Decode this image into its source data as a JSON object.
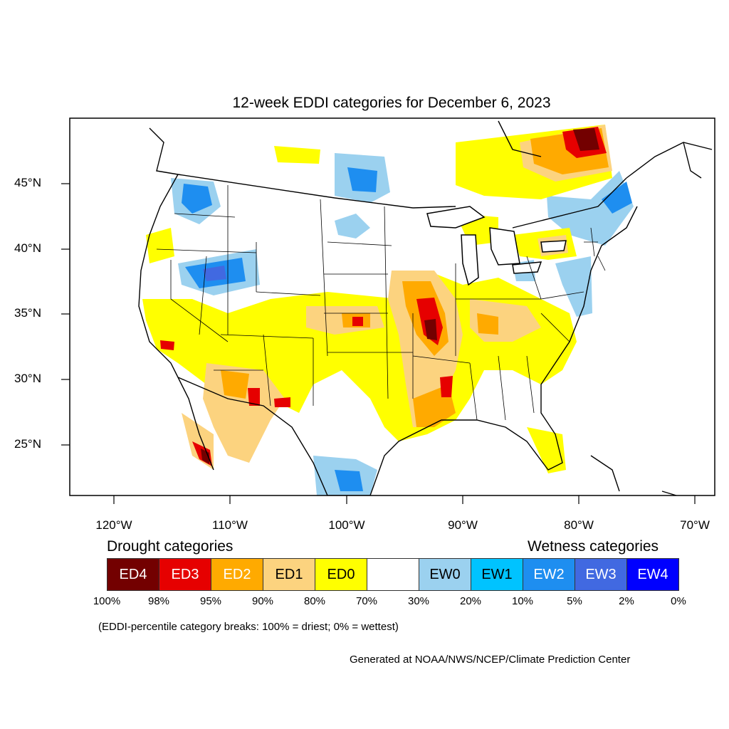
{
  "title": "12-week EDDI categories for December 6, 2023",
  "lat_labels": [
    "45°N",
    "40°N",
    "35°N",
    "30°N",
    "25°N"
  ],
  "lon_labels": [
    "120°W",
    "110°W",
    "100°W",
    "90°W",
    "80°W",
    "70°W"
  ],
  "legend": {
    "drought_title": "Drought categories",
    "wetness_title": "Wetness categories",
    "categories": [
      {
        "label": "ED4",
        "color": "#730000",
        "text_color": "#ffffff"
      },
      {
        "label": "ED3",
        "color": "#e60000",
        "text_color": "#ffffff"
      },
      {
        "label": "ED2",
        "color": "#ffaa00",
        "text_color": "#ffffff"
      },
      {
        "label": "ED1",
        "color": "#fcd37f",
        "text_color": "#000000"
      },
      {
        "label": "ED0",
        "color": "#ffff00",
        "text_color": "#000000"
      },
      {
        "label": "",
        "color": "#ffffff",
        "text_color": "#000000"
      },
      {
        "label": "EW0",
        "color": "#9bd1ef",
        "text_color": "#000000"
      },
      {
        "label": "EW1",
        "color": "#00c3ff",
        "text_color": "#000000"
      },
      {
        "label": "EW2",
        "color": "#1e8ef0",
        "text_color": "#ffffff"
      },
      {
        "label": "EW3",
        "color": "#4169e1",
        "text_color": "#ffffff"
      },
      {
        "label": "EW4",
        "color": "#0000ff",
        "text_color": "#ffffff"
      }
    ],
    "breaks": [
      "100%",
      "98%",
      "95%",
      "90%",
      "80%",
      "70%",
      "30%",
      "20%",
      "10%",
      "5%",
      "2%",
      "0%"
    ]
  },
  "note": "(EDDI-percentile category breaks: 100% = driest; 0% = wettest)",
  "credit": "Generated at NOAA/NWS/NCEP/Climate Prediction Center"
}
